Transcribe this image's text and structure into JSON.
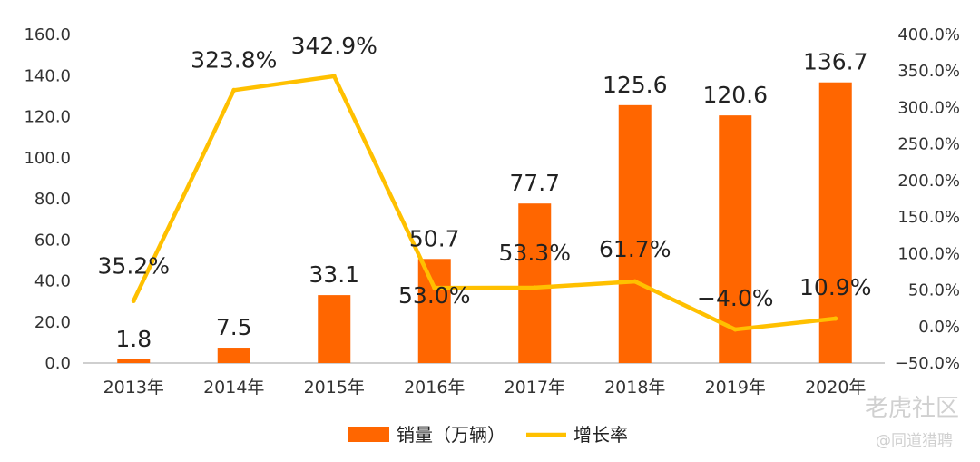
{
  "chart_data": {
    "type": "bar",
    "categories": [
      "2013年",
      "2014年",
      "2015年",
      "2016年",
      "2017年",
      "2018年",
      "2019年",
      "2020年"
    ],
    "series": [
      {
        "name": "销量（万辆）",
        "type": "bar",
        "axis": "left",
        "values": [
          1.8,
          7.5,
          33.1,
          50.7,
          77.7,
          125.6,
          120.6,
          136.7
        ],
        "labels": [
          "1.8",
          "7.5",
          "33.1",
          "50.7",
          "77.7",
          "125.6",
          "120.6",
          "136.7"
        ],
        "color": "#FF6600"
      },
      {
        "name": "增长率",
        "type": "line",
        "axis": "right",
        "values": [
          35.2,
          323.8,
          342.9,
          53.0,
          53.3,
          61.7,
          -4.0,
          10.9
        ],
        "labels": [
          "35.2%",
          "323.8%",
          "342.9%",
          "53.0%",
          "53.3%",
          "61.7%",
          "−4.0%",
          "10.9%"
        ],
        "color": "#FFC000"
      }
    ],
    "y_left": {
      "min": 0,
      "max": 160,
      "step": 20,
      "tick_labels": [
        "0.0",
        "20.0",
        "40.0",
        "60.0",
        "80.0",
        "100.0",
        "120.0",
        "140.0",
        "160.0"
      ]
    },
    "y_right": {
      "min": -50,
      "max": 400,
      "step": 50,
      "tick_labels": [
        "−50.0%",
        "0.0%",
        "50.0%",
        "100.0%",
        "150.0%",
        "200.0%",
        "250.0%",
        "300.0%",
        "350.0%",
        "400.0%"
      ]
    },
    "grid": false,
    "legend_position": "bottom-center",
    "title": "",
    "xlabel": "",
    "ylabel": ""
  },
  "watermark": {
    "line1": "老虎社区",
    "line2": "@同道猎聘"
  }
}
